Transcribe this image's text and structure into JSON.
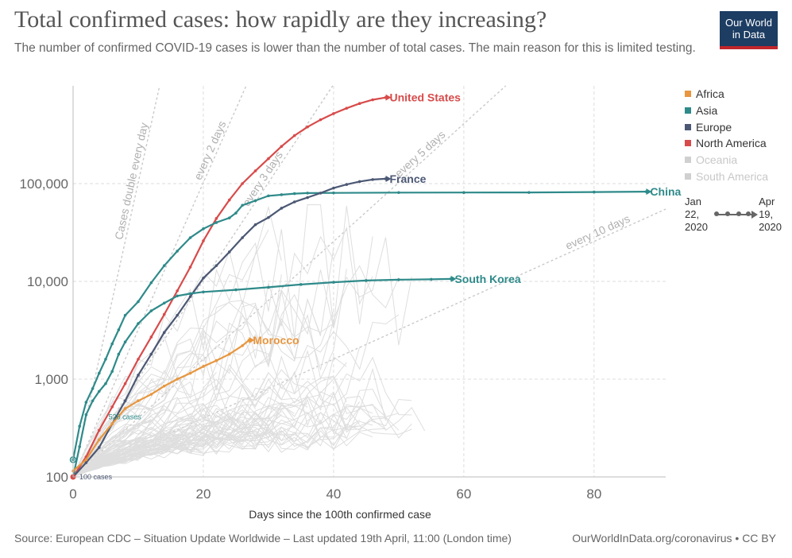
{
  "header": {
    "title": "Total confirmed cases: how rapidly are they increasing?",
    "subtitle": "The number of confirmed COVID-19 cases is lower than the number of total cases. The main reason for this is limited testing.",
    "logo_line1": "Our World",
    "logo_line2": "in Data"
  },
  "footer": {
    "source": "Source: European CDC – Situation Update Worldwide – Last updated 19th April, 11:00 (London time)",
    "credit": "OurWorldInData.org/coronavirus • CC BY"
  },
  "legend": {
    "items": [
      {
        "label": "Africa",
        "color": "#e8963f",
        "active": true
      },
      {
        "label": "Asia",
        "color": "#2f8a8a",
        "active": true
      },
      {
        "label": "Europe",
        "color": "#4c5874",
        "active": true
      },
      {
        "label": "North America",
        "color": "#d84b4b",
        "active": true
      },
      {
        "label": "Oceania",
        "color": "#d0d0d0",
        "active": false
      },
      {
        "label": "South America",
        "color": "#d0d0d0",
        "active": false
      }
    ]
  },
  "timeline": {
    "start_month": "Jan",
    "start_day": "22,",
    "start_year": "2020",
    "end_month": "Apr",
    "end_day": "19,",
    "end_year": "2020"
  },
  "chart_data": {
    "type": "line",
    "title": "Total confirmed cases: how rapidly are they increasing?",
    "xlabel": "Days since the 100th confirmed case",
    "ylabel": "",
    "x_scale": "linear",
    "y_scale": "log",
    "xlim": [
      0,
      91
    ],
    "ylim": [
      100,
      1000000
    ],
    "x_ticks": [
      0,
      20,
      40,
      60,
      80
    ],
    "y_ticks": [
      100,
      1000,
      10000,
      100000
    ],
    "y_tick_labels": [
      "100",
      "1,000",
      "10,000",
      "100,000"
    ],
    "grid": true,
    "legend_position": "right",
    "reference_lines": [
      {
        "label": "Cases double every day",
        "doubling_days": 1
      },
      {
        "label": "every 2 days",
        "doubling_days": 2
      },
      {
        "label": "every 3 days",
        "doubling_days": 3
      },
      {
        "label": "every 5 days",
        "doubling_days": 5
      },
      {
        "label": "every 10 days",
        "doubling_days": 10
      }
    ],
    "annotations": [
      {
        "text": "526 cases",
        "x": 3,
        "y": 526
      },
      {
        "text": "100 cases",
        "x": 0,
        "y": 100
      }
    ],
    "series": [
      {
        "name": "United States",
        "region": "North America",
        "color": "#d84b4b",
        "points": [
          [
            0,
            100
          ],
          [
            2,
            160
          ],
          [
            4,
            300
          ],
          [
            6,
            520
          ],
          [
            8,
            900
          ],
          [
            10,
            1600
          ],
          [
            12,
            2700
          ],
          [
            14,
            4600
          ],
          [
            16,
            8000
          ],
          [
            18,
            14000
          ],
          [
            20,
            26000
          ],
          [
            22,
            44000
          ],
          [
            24,
            68000
          ],
          [
            26,
            100000
          ],
          [
            28,
            135000
          ],
          [
            30,
            180000
          ],
          [
            32,
            240000
          ],
          [
            34,
            310000
          ],
          [
            36,
            380000
          ],
          [
            38,
            450000
          ],
          [
            40,
            520000
          ],
          [
            42,
            590000
          ],
          [
            44,
            660000
          ],
          [
            46,
            720000
          ],
          [
            48,
            760000
          ]
        ]
      },
      {
        "name": "China",
        "region": "Asia",
        "color": "#2f8a8a",
        "points": [
          [
            0,
            150
          ],
          [
            1,
            330
          ],
          [
            2,
            580
          ],
          [
            3,
            800
          ],
          [
            4,
            1150
          ],
          [
            5,
            1600
          ],
          [
            6,
            2300
          ],
          [
            7,
            3200
          ],
          [
            8,
            4500
          ],
          [
            10,
            6200
          ],
          [
            12,
            9700
          ],
          [
            14,
            14500
          ],
          [
            16,
            20400
          ],
          [
            18,
            28000
          ],
          [
            20,
            34500
          ],
          [
            22,
            40000
          ],
          [
            24,
            44600
          ],
          [
            25,
            50000
          ],
          [
            26,
            60000
          ],
          [
            28,
            67000
          ],
          [
            30,
            75000
          ],
          [
            32,
            77000
          ],
          [
            34,
            79000
          ],
          [
            36,
            80000
          ],
          [
            40,
            80400
          ],
          [
            50,
            81000
          ],
          [
            60,
            81100
          ],
          [
            70,
            81200
          ],
          [
            80,
            82000
          ],
          [
            88,
            82700
          ]
        ]
      },
      {
        "name": "France",
        "region": "Europe",
        "color": "#4c5874",
        "points": [
          [
            0,
            100
          ],
          [
            2,
            140
          ],
          [
            4,
            200
          ],
          [
            6,
            350
          ],
          [
            8,
            600
          ],
          [
            10,
            1100
          ],
          [
            12,
            1800
          ],
          [
            14,
            3000
          ],
          [
            16,
            4500
          ],
          [
            18,
            7000
          ],
          [
            20,
            10800
          ],
          [
            22,
            14500
          ],
          [
            24,
            20000
          ],
          [
            26,
            28000
          ],
          [
            28,
            38000
          ],
          [
            30,
            45000
          ],
          [
            32,
            56000
          ],
          [
            34,
            65000
          ],
          [
            36,
            72000
          ],
          [
            38,
            80000
          ],
          [
            40,
            90000
          ],
          [
            42,
            98000
          ],
          [
            44,
            105000
          ],
          [
            46,
            110000
          ],
          [
            48,
            112000
          ]
        ]
      },
      {
        "name": "South Korea",
        "region": "Asia",
        "color": "#2f8a8a",
        "points": [
          [
            0,
            100
          ],
          [
            1,
            204
          ],
          [
            2,
            433
          ],
          [
            3,
            600
          ],
          [
            4,
            750
          ],
          [
            5,
            900
          ],
          [
            6,
            1200
          ],
          [
            7,
            1800
          ],
          [
            8,
            2400
          ],
          [
            10,
            3700
          ],
          [
            12,
            5000
          ],
          [
            14,
            6000
          ],
          [
            16,
            7100
          ],
          [
            18,
            7500
          ],
          [
            20,
            7800
          ],
          [
            25,
            8200
          ],
          [
            30,
            8700
          ],
          [
            35,
            9300
          ],
          [
            40,
            9800
          ],
          [
            45,
            10200
          ],
          [
            50,
            10400
          ],
          [
            55,
            10500
          ],
          [
            58,
            10600
          ]
        ]
      },
      {
        "name": "Morocco",
        "region": "Africa",
        "color": "#e8963f",
        "points": [
          [
            0,
            115
          ],
          [
            2,
            150
          ],
          [
            4,
            240
          ],
          [
            6,
            350
          ],
          [
            8,
            500
          ],
          [
            10,
            600
          ],
          [
            12,
            700
          ],
          [
            14,
            850
          ],
          [
            16,
            1000
          ],
          [
            18,
            1150
          ],
          [
            20,
            1350
          ],
          [
            22,
            1550
          ],
          [
            24,
            1800
          ],
          [
            26,
            2200
          ],
          [
            27,
            2500
          ]
        ]
      }
    ]
  }
}
